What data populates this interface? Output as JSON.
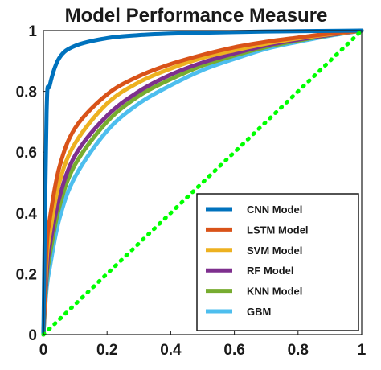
{
  "chart_data": {
    "type": "line",
    "title": "Model Performance Measure",
    "xlabel": "",
    "ylabel": "",
    "xlim": [
      0,
      1
    ],
    "ylim": [
      0,
      1
    ],
    "x_ticks": [
      "0",
      "0.2",
      "0.4",
      "0.6",
      "0.8",
      "1"
    ],
    "y_ticks": [
      "0",
      "0.2",
      "0.4",
      "0.6",
      "0.8",
      "1"
    ],
    "grid": false,
    "legend_position": "bottom-right",
    "x": [
      0,
      0.01,
      0.02,
      0.05,
      0.1,
      0.2,
      0.3,
      0.4,
      0.5,
      0.6,
      0.7,
      0.8,
      0.9,
      1.0
    ],
    "series": [
      {
        "name": "CNN Model",
        "color": "#0072bd",
        "values": [
          0,
          0.73,
          0.82,
          0.91,
          0.95,
          0.975,
          0.985,
          0.99,
          0.993,
          0.995,
          0.997,
          0.998,
          0.999,
          1.0
        ]
      },
      {
        "name": "LSTM Model",
        "color": "#d95319",
        "values": [
          0,
          0.28,
          0.38,
          0.55,
          0.68,
          0.79,
          0.85,
          0.89,
          0.92,
          0.945,
          0.963,
          0.977,
          0.99,
          1.0
        ]
      },
      {
        "name": "SVM Model",
        "color": "#edb120",
        "values": [
          0,
          0.24,
          0.33,
          0.5,
          0.63,
          0.76,
          0.83,
          0.875,
          0.91,
          0.935,
          0.957,
          0.974,
          0.988,
          1.0
        ]
      },
      {
        "name": "RF Model",
        "color": "#7e2f8e",
        "values": [
          0,
          0.2,
          0.29,
          0.45,
          0.59,
          0.72,
          0.8,
          0.855,
          0.895,
          0.925,
          0.951,
          0.97,
          0.986,
          1.0
        ]
      },
      {
        "name": "KNN Model",
        "color": "#77ac30",
        "values": [
          0,
          0.18,
          0.26,
          0.42,
          0.56,
          0.7,
          0.785,
          0.84,
          0.885,
          0.918,
          0.946,
          0.967,
          0.985,
          1.0
        ]
      },
      {
        "name": "GBM",
        "color": "#4dbeee",
        "values": [
          0,
          0.15,
          0.22,
          0.38,
          0.52,
          0.67,
          0.76,
          0.82,
          0.87,
          0.907,
          0.94,
          0.963,
          0.983,
          1.0
        ]
      }
    ],
    "reference_line": {
      "color": "#00ff00",
      "style": "dotted",
      "x": [
        0,
        1
      ],
      "y": [
        0,
        1
      ]
    }
  }
}
